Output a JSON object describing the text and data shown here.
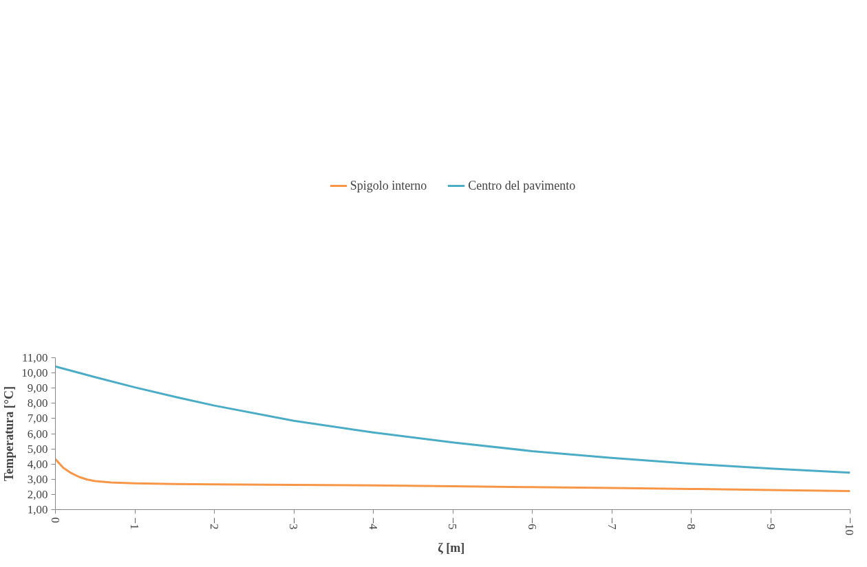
{
  "chart_data": {
    "type": "line",
    "xlabel": "ζ  [m]",
    "ylabel": "Temperatura [°C]",
    "xlim": [
      0,
      -10
    ],
    "xticks": [
      0,
      -1,
      -2,
      -3,
      -4,
      -5,
      -6,
      -7,
      -8,
      -9,
      -10
    ],
    "ylim": [
      1,
      11
    ],
    "yticks": [
      {
        "value": 1,
        "label": "1,00"
      },
      {
        "value": 2,
        "label": "2,00"
      },
      {
        "value": 3,
        "label": "3,00"
      },
      {
        "value": 4,
        "label": "4,00"
      },
      {
        "value": 5,
        "label": "5,00"
      },
      {
        "value": 6,
        "label": "6,00"
      },
      {
        "value": 7,
        "label": "7,00"
      },
      {
        "value": 8,
        "label": "8,00"
      },
      {
        "value": 9,
        "label": "9,00"
      },
      {
        "value": 10,
        "label": "10,00"
      },
      {
        "value": 11,
        "label": "11,00"
      }
    ],
    "grid": false,
    "legend": "top",
    "marker": "none",
    "line_style": "solid",
    "series": [
      {
        "name": "Spigolo interno",
        "color": "#f79646",
        "x": [
          0,
          -0.1,
          -0.2,
          -0.3,
          -0.4,
          -0.5,
          -0.7,
          -1,
          -1.5,
          -2,
          -3,
          -4,
          -5,
          -6,
          -7,
          -8,
          -9,
          -10
        ],
        "values": [
          4.32,
          3.75,
          3.4,
          3.15,
          2.98,
          2.88,
          2.79,
          2.73,
          2.68,
          2.66,
          2.63,
          2.59,
          2.54,
          2.48,
          2.42,
          2.36,
          2.29,
          2.22
        ]
      },
      {
        "name": "Centro del pavimento",
        "color": "#4bacc6",
        "x": [
          0,
          -0.5,
          -1,
          -1.5,
          -2,
          -3,
          -4,
          -5,
          -6,
          -7,
          -8,
          -9,
          -10
        ],
        "values": [
          10.42,
          9.72,
          9.05,
          8.43,
          7.85,
          6.85,
          6.08,
          5.42,
          4.85,
          4.4,
          4.02,
          3.7,
          3.43
        ]
      }
    ]
  }
}
